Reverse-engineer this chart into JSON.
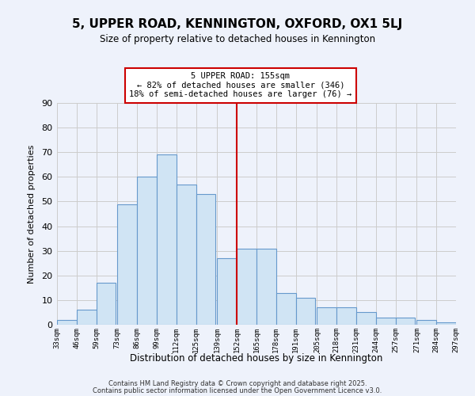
{
  "title": "5, UPPER ROAD, KENNINGTON, OXFORD, OX1 5LJ",
  "subtitle": "Size of property relative to detached houses in Kennington",
  "xlabel": "Distribution of detached houses by size in Kennington",
  "ylabel": "Number of detached properties",
  "bin_labels": [
    "33sqm",
    "46sqm",
    "59sqm",
    "73sqm",
    "86sqm",
    "99sqm",
    "112sqm",
    "125sqm",
    "139sqm",
    "152sqm",
    "165sqm",
    "178sqm",
    "191sqm",
    "205sqm",
    "218sqm",
    "231sqm",
    "244sqm",
    "257sqm",
    "271sqm",
    "284sqm",
    "297sqm"
  ],
  "bin_edges": [
    33,
    46,
    59,
    73,
    86,
    99,
    112,
    125,
    139,
    152,
    165,
    178,
    191,
    205,
    218,
    231,
    244,
    257,
    271,
    284,
    297
  ],
  "counts": [
    2,
    6,
    17,
    49,
    60,
    69,
    57,
    53,
    27,
    31,
    31,
    13,
    11,
    7,
    7,
    5,
    3,
    3,
    2,
    1
  ],
  "bar_color": "#d0e4f4",
  "bar_edge_color": "#6699cc",
  "marker_value": 152,
  "marker_color": "#cc0000",
  "annotation_title": "5 UPPER ROAD: 155sqm",
  "annotation_line1": "← 82% of detached houses are smaller (346)",
  "annotation_line2": "18% of semi-detached houses are larger (76) →",
  "annotation_box_color": "#ffffff",
  "annotation_box_edge": "#cc0000",
  "ylim": [
    0,
    90
  ],
  "yticks": [
    0,
    10,
    20,
    30,
    40,
    50,
    60,
    70,
    80,
    90
  ],
  "footer1": "Contains HM Land Registry data © Crown copyright and database right 2025.",
  "footer2": "Contains public sector information licensed under the Open Government Licence v3.0.",
  "background_color": "#eef2fb"
}
